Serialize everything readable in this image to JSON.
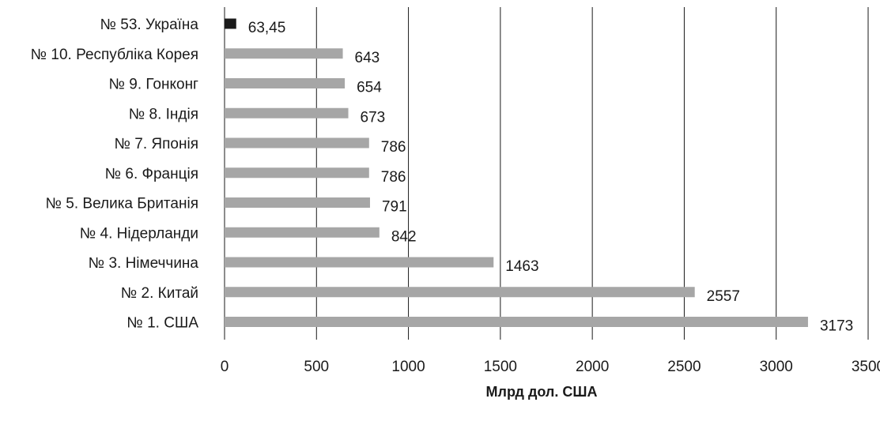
{
  "chart_data": {
    "type": "bar",
    "orientation": "horizontal",
    "categories": [
      "№ 53. Україна",
      "№ 10. Республіка Корея",
      "№ 9. Гонконг",
      "№ 8. Індія",
      "№ 7. Японія",
      "№ 6. Франція",
      "№ 5. Велика Британія",
      "№ 4. Нідерланди",
      "№ 3. Німеччина",
      "№ 2. Китай",
      "№ 1. США"
    ],
    "values": [
      63.45,
      643,
      654,
      673,
      786,
      786,
      791,
      842,
      1463,
      2557,
      3173
    ],
    "value_labels": [
      "63,45",
      "643",
      "654",
      "673",
      "786",
      "786",
      "791",
      "842",
      "1463",
      "2557",
      "3173"
    ],
    "highlight_index": 0,
    "colors": {
      "bar": "#a6a6a6",
      "highlight": "#1a1a1a",
      "grid": "#1a1a1a"
    },
    "xlabel": "Млрд дол. США",
    "xlim": [
      0,
      3500
    ],
    "xticks": [
      0,
      500,
      1000,
      1500,
      2000,
      2500,
      3000,
      3500
    ],
    "grid": "vertical",
    "legend": "none"
  }
}
